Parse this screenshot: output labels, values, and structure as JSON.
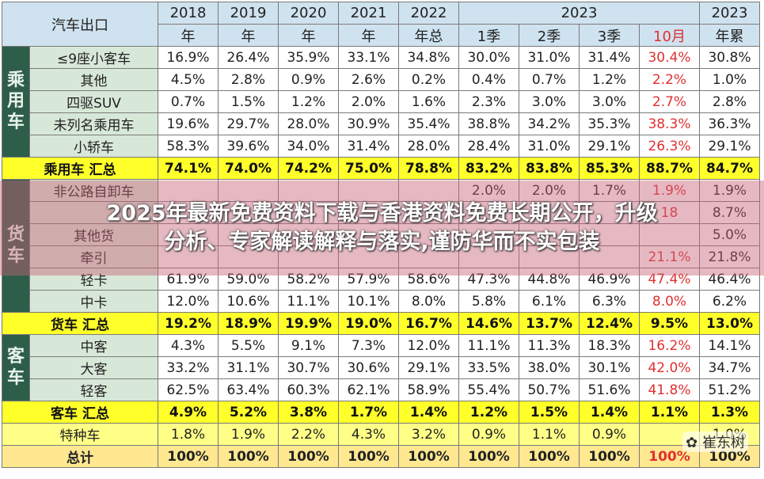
{
  "header": {
    "corner": "汽车出口",
    "years": [
      "2018",
      "2019",
      "2020",
      "2021",
      "2022",
      "2023",
      "2023"
    ],
    "sub": [
      "年",
      "年",
      "年",
      "年",
      "年总",
      "1季",
      "2季",
      "3季",
      "10月",
      "年累"
    ]
  },
  "rows": [
    {
      "cat": "乘用车",
      "label": "≤9座小客车",
      "v": [
        "16.9%",
        "26.4%",
        "35.9%",
        "33.1%",
        "34.8%",
        "30.0%",
        "31.0%",
        "31.4%",
        "30.4%",
        "30.8%"
      ]
    },
    {
      "label": "其他",
      "v": [
        "4.5%",
        "2.8%",
        "0.9%",
        "2.6%",
        "0.2%",
        "0.4%",
        "0.7%",
        "1.2%",
        "2.2%",
        "1.0%"
      ]
    },
    {
      "label": "四驱SUV",
      "v": [
        "0.7%",
        "1.5%",
        "1.2%",
        "2.0%",
        "1.6%",
        "2.3%",
        "3.0%",
        "3.0%",
        "2.7%",
        "2.8%"
      ]
    },
    {
      "label": "未列名乘用车",
      "v": [
        "19.6%",
        "29.7%",
        "28.0%",
        "30.9%",
        "35.4%",
        "38.8%",
        "34.2%",
        "35.3%",
        "38.3%",
        "36.3%"
      ]
    },
    {
      "label": "小轿车",
      "v": [
        "58.3%",
        "39.6%",
        "34.0%",
        "31.4%",
        "28.0%",
        "28.4%",
        "31.0%",
        "29.1%",
        "26.3%",
        "29.1%"
      ]
    }
  ],
  "sum_passenger": {
    "label": "乘用车 汇总",
    "v": [
      "74.1%",
      "74.0%",
      "74.2%",
      "75.0%",
      "78.8%",
      "83.2%",
      "83.8%",
      "85.3%",
      "88.7%",
      "84.7%"
    ]
  },
  "truck_rows": [
    {
      "cat": "货车",
      "label": "非公路自卸车",
      "v": [
        "",
        "",
        "",
        "",
        "",
        "2.0%",
        "2.0%",
        "1.7%",
        "1.9%",
        "1.9%"
      ]
    },
    {
      "label": "",
      "v": [
        "",
        "",
        "",
        "",
        "",
        "",
        "",
        "",
        "18",
        "8.7%"
      ]
    },
    {
      "label": "其他货",
      "v": [
        "",
        "",
        "",
        "",
        "",
        "",
        "",
        "",
        "",
        "5.0%"
      ]
    },
    {
      "label": "牵引",
      "v": [
        "",
        "",
        "",
        "",
        "",
        "",
        "",
        "",
        "21.1%",
        "21.8%"
      ]
    },
    {
      "label": "轻卡",
      "v": [
        "61.9%",
        "59.0%",
        "58.2%",
        "57.9%",
        "58.6%",
        "47.3%",
        "44.8%",
        "46.9%",
        "47.4%",
        "46.4%"
      ]
    },
    {
      "label": "中卡",
      "v": [
        "12.0%",
        "10.6%",
        "11.1%",
        "10.1%",
        "8.0%",
        "5.8%",
        "6.1%",
        "6.3%",
        "8.0%",
        "6.2%"
      ]
    }
  ],
  "sum_truck": {
    "label": "货车 汇总",
    "v": [
      "19.2%",
      "18.9%",
      "19.9%",
      "19.0%",
      "16.7%",
      "14.6%",
      "13.7%",
      "12.4%",
      "9.5%",
      "13.0%"
    ]
  },
  "bus_rows": [
    {
      "cat": "客车",
      "label": "中客",
      "v": [
        "4.3%",
        "5.5%",
        "9.1%",
        "7.3%",
        "12.0%",
        "11.1%",
        "11.3%",
        "18.3%",
        "16.2%",
        "14.1%"
      ]
    },
    {
      "label": "大客",
      "v": [
        "33.2%",
        "31.1%",
        "30.7%",
        "30.6%",
        "29.1%",
        "33.5%",
        "38.0%",
        "30.1%",
        "42.0%",
        "34.7%"
      ]
    },
    {
      "label": "轻客",
      "v": [
        "62.5%",
        "63.4%",
        "60.3%",
        "62.1%",
        "58.9%",
        "55.4%",
        "50.7%",
        "51.6%",
        "41.8%",
        "51.2%"
      ]
    }
  ],
  "sum_bus": {
    "label": "客车 汇总",
    "v": [
      "4.9%",
      "5.2%",
      "3.8%",
      "1.7%",
      "1.4%",
      "1.2%",
      "1.5%",
      "1.4%",
      "1.1%",
      "1.3%"
    ]
  },
  "special": {
    "label": "特种车",
    "v": [
      "1.8%",
      "1.9%",
      "2.2%",
      "4.3%",
      "3.2%",
      "0.9%",
      "1.1%",
      "0.9%",
      "",
      "1.0%"
    ]
  },
  "total": {
    "label": "总计",
    "v": [
      "100%",
      "100%",
      "100%",
      "100%",
      "100%",
      "100%",
      "100%",
      "100%",
      "100%",
      "100%"
    ]
  },
  "overlay": {
    "line1": "2025年最新免费资料下载与香港资料免费长期公开，升级",
    "line2": "分析、专家解读解释与落实,谨防华而不实包装"
  },
  "watermark": "崔东树",
  "colors": {
    "header": "#cfe2ef",
    "category": "#2e5e4a",
    "sum": "#ffff2a",
    "highlight": "#e03030"
  }
}
